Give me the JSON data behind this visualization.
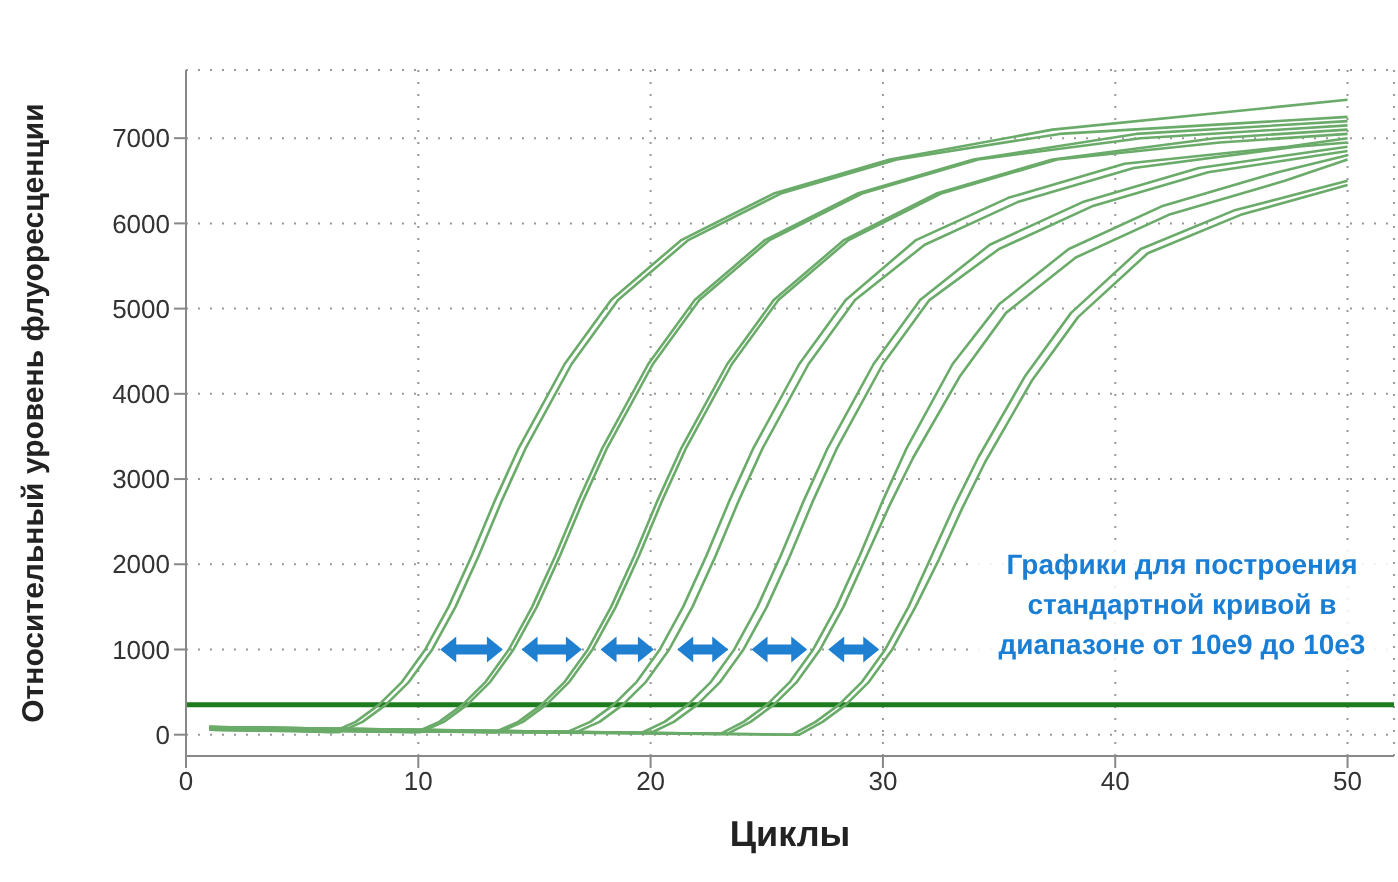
{
  "chart_data": {
    "type": "line",
    "xlabel": "Циклы",
    "ylabel": "Относительный уровень флуоресценции",
    "xlim": [
      0,
      52
    ],
    "xticks": [
      0,
      10,
      20,
      30,
      40,
      50
    ],
    "ylim": [
      -250,
      7800
    ],
    "yticks": [
      0,
      1000,
      2000,
      3000,
      4000,
      5000,
      6000,
      7000
    ],
    "grid": true,
    "legend": false,
    "line_style": "solid",
    "ref_lines": [
      {
        "axis": "y",
        "value": 350,
        "color": "#1e7b1e"
      }
    ],
    "annotations": [
      "Графики для построения стандартной кривой в диапазоне от 10e9 до 10e3"
    ],
    "series": [
      {
        "color": "#6aab6a",
        "x": [
          1,
          6.3,
          7.3,
          8.3,
          9.3,
          10.3,
          11.3,
          12.3,
          13.3,
          14.3,
          16.3,
          18.3,
          21.3,
          25.3,
          30.3,
          37.3,
          50
        ],
        "values": [
          90,
          30,
          150,
          350,
          620,
          1000,
          1500,
          2100,
          2750,
          3350,
          4350,
          5100,
          5800,
          6350,
          6750,
          7100,
          7450
        ]
      },
      {
        "color": "#6aab6a",
        "x": [
          1,
          6.6,
          7.6,
          8.6,
          9.6,
          10.6,
          11.6,
          12.6,
          13.6,
          14.6,
          16.6,
          18.6,
          21.6,
          25.6,
          30.6,
          37.6,
          50
        ],
        "values": [
          60,
          30,
          150,
          350,
          620,
          1000,
          1500,
          2100,
          2750,
          3350,
          4350,
          5100,
          5800,
          6350,
          6750,
          7050,
          7250
        ]
      },
      {
        "color": "#6aab6a",
        "x": [
          1,
          9.9,
          10.9,
          11.9,
          12.9,
          13.9,
          14.9,
          15.9,
          16.9,
          17.9,
          19.9,
          21.9,
          24.9,
          28.9,
          33.9,
          40.9,
          50
        ],
        "values": [
          90,
          30,
          150,
          350,
          620,
          1000,
          1500,
          2100,
          2750,
          3350,
          4350,
          5100,
          5800,
          6350,
          6750,
          7050,
          7200
        ]
      },
      {
        "color": "#6aab6a",
        "x": [
          1,
          10.1,
          11.1,
          12.1,
          13.1,
          14.1,
          15.1,
          16.1,
          17.1,
          18.1,
          20.1,
          22.1,
          25.1,
          29.1,
          34.1,
          41.1,
          50
        ],
        "values": [
          60,
          30,
          150,
          350,
          620,
          1000,
          1500,
          2100,
          2750,
          3350,
          4350,
          5100,
          5800,
          6350,
          6750,
          7000,
          7150
        ]
      },
      {
        "color": "#6aab6a",
        "x": [
          1,
          13.3,
          14.3,
          15.3,
          16.3,
          17.3,
          18.3,
          19.3,
          20.3,
          21.3,
          23.3,
          25.3,
          28.3,
          32.3,
          37.3,
          44.3,
          50
        ],
        "values": [
          90,
          30,
          150,
          350,
          620,
          1000,
          1500,
          2100,
          2750,
          3350,
          4350,
          5100,
          5800,
          6350,
          6750,
          7000,
          7100
        ]
      },
      {
        "color": "#6aab6a",
        "x": [
          1,
          13.5,
          14.5,
          15.5,
          16.5,
          17.5,
          18.5,
          19.5,
          20.5,
          21.5,
          23.5,
          25.5,
          28.5,
          32.5,
          37.5,
          44.5,
          50
        ],
        "values": [
          60,
          30,
          150,
          350,
          620,
          1000,
          1500,
          2100,
          2750,
          3350,
          4350,
          5100,
          5800,
          6350,
          6750,
          6950,
          7050
        ]
      },
      {
        "color": "#6aab6a",
        "x": [
          1,
          16.4,
          17.4,
          18.4,
          19.4,
          20.4,
          21.4,
          22.4,
          23.4,
          24.4,
          26.4,
          28.4,
          31.4,
          35.4,
          40.4,
          47.4,
          50
        ],
        "values": [
          90,
          30,
          150,
          350,
          620,
          1000,
          1500,
          2100,
          2750,
          3350,
          4350,
          5100,
          5800,
          6300,
          6700,
          6900,
          7000
        ]
      },
      {
        "color": "#6aab6a",
        "x": [
          1,
          16.8,
          17.8,
          18.8,
          19.8,
          20.8,
          21.8,
          22.8,
          23.8,
          24.8,
          26.8,
          28.8,
          31.8,
          35.8,
          40.8,
          47.8,
          50
        ],
        "values": [
          60,
          30,
          150,
          350,
          620,
          1000,
          1500,
          2100,
          2750,
          3350,
          4350,
          5100,
          5750,
          6250,
          6650,
          6900,
          6950
        ]
      },
      {
        "color": "#6aab6a",
        "x": [
          1,
          19.6,
          20.6,
          21.6,
          22.6,
          23.6,
          24.6,
          25.6,
          26.6,
          27.6,
          29.6,
          31.6,
          34.6,
          38.6,
          43.6,
          50
        ],
        "values": [
          90,
          20,
          150,
          350,
          620,
          1000,
          1500,
          2100,
          2750,
          3350,
          4350,
          5100,
          5750,
          6250,
          6650,
          6900
        ]
      },
      {
        "color": "#6aab6a",
        "x": [
          1,
          20,
          21,
          22,
          23,
          24,
          25,
          26,
          27,
          28,
          30,
          32,
          35,
          39,
          44,
          50
        ],
        "values": [
          60,
          20,
          150,
          350,
          620,
          1000,
          1500,
          2100,
          2750,
          3350,
          4350,
          5100,
          5700,
          6200,
          6600,
          6850
        ]
      },
      {
        "color": "#6aab6a",
        "x": [
          1,
          23,
          24,
          25,
          26,
          27,
          28,
          29,
          30,
          31,
          33,
          35,
          38,
          42,
          47,
          50
        ],
        "values": [
          90,
          10,
          150,
          350,
          620,
          1000,
          1500,
          2100,
          2750,
          3350,
          4350,
          5050,
          5700,
          6200,
          6600,
          6800
        ]
      },
      {
        "color": "#6aab6a",
        "x": [
          1,
          23.3,
          24.3,
          25.3,
          26.3,
          27.3,
          28.3,
          29.3,
          30.3,
          31.3,
          33.3,
          35.3,
          38.3,
          42.3,
          47.3,
          50
        ],
        "values": [
          60,
          10,
          150,
          350,
          620,
          1000,
          1500,
          2100,
          2700,
          3250,
          4200,
          4950,
          5600,
          6100,
          6500,
          6750
        ]
      },
      {
        "color": "#6aab6a",
        "x": [
          1,
          26.1,
          27.1,
          28.1,
          29.1,
          30.1,
          31.1,
          32.1,
          33.1,
          34.1,
          36.1,
          38.1,
          41.1,
          45.1,
          50
        ],
        "values": [
          90,
          0,
          150,
          350,
          620,
          1000,
          1500,
          2100,
          2700,
          3250,
          4200,
          4950,
          5700,
          6150,
          6500
        ]
      },
      {
        "color": "#6aab6a",
        "x": [
          1,
          26.4,
          27.4,
          28.4,
          29.4,
          30.4,
          31.4,
          32.4,
          33.4,
          34.4,
          36.4,
          38.4,
          41.4,
          45.4,
          50
        ],
        "values": [
          60,
          0,
          150,
          350,
          620,
          1000,
          1500,
          2050,
          2650,
          3200,
          4150,
          4900,
          5650,
          6100,
          6450
        ]
      }
    ]
  }
}
